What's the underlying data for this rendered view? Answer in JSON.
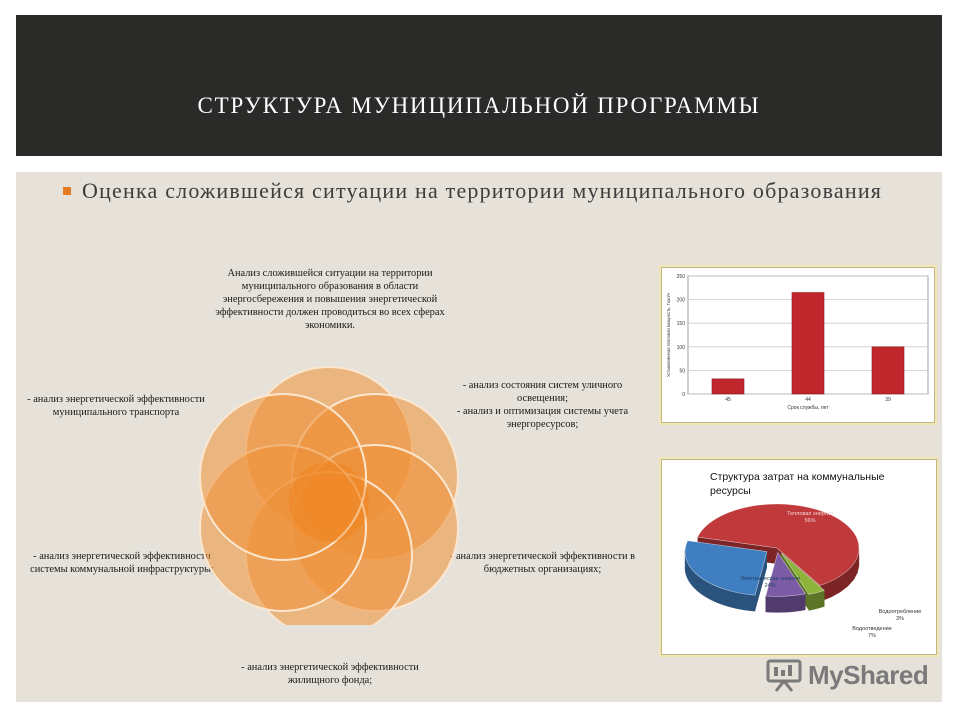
{
  "slide": {
    "title": "СТРУКТУРА МУНИЦИПАЛЬНОЙ ПРОГРАММЫ",
    "bullet": "Оценка сложившейся ситуации на территории муниципального образования",
    "accent_color": "#e37a21",
    "title_bg": "#2a2a29"
  },
  "diagram": {
    "top": "Анализ сложившейся ситуации на территории муниципального образования в области энергосбережения и повышения энергетической эффективности должен проводиться во всех сферах экономики.",
    "top_right": "- анализ состояния систем уличного освещения;\n- анализ и оптимизация системы учета энергоресурсов;",
    "top_left": "- анализ энергетической эффективности муниципального транспорта",
    "bottom_right": "- анализ энергетической эффективности в бюджетных организациях;",
    "bottom_left": "- анализ энергетической эффективности системы коммунальной инфраструктуры;",
    "bottom": "- анализ энергетической эффективности жилищного фонда;"
  },
  "chart_data": [
    {
      "type": "bar",
      "categories": [
        "45",
        "44",
        "39"
      ],
      "values": [
        32,
        215,
        100
      ],
      "ylim": [
        0,
        250
      ],
      "yticks": [
        0,
        50,
        100,
        150,
        200,
        250
      ],
      "xlabel": "Срок службы, лет",
      "ylabel": "Установленная тепловая мощность, Гкал/ч",
      "grid": true,
      "bar_color": "#c0272d"
    },
    {
      "type": "pie",
      "title": "Структура затрат на коммунальные ресурсы",
      "slices": [
        {
          "label": "Тепловая энергия",
          "value": 56,
          "value_label": "56%",
          "color": "#c0393b"
        },
        {
          "label": "Водоотребление",
          "value": 3,
          "value_label": "3%",
          "color": "#8db33a"
        },
        {
          "label": "Водоотведение",
          "value": 7,
          "value_label": "7%",
          "color": "#7b5aa6"
        },
        {
          "label": "Электрическая энергия",
          "value": 24,
          "value_label": "24%",
          "color": "#3f7ec1"
        }
      ]
    }
  ],
  "watermark": {
    "text": "MyShared"
  }
}
